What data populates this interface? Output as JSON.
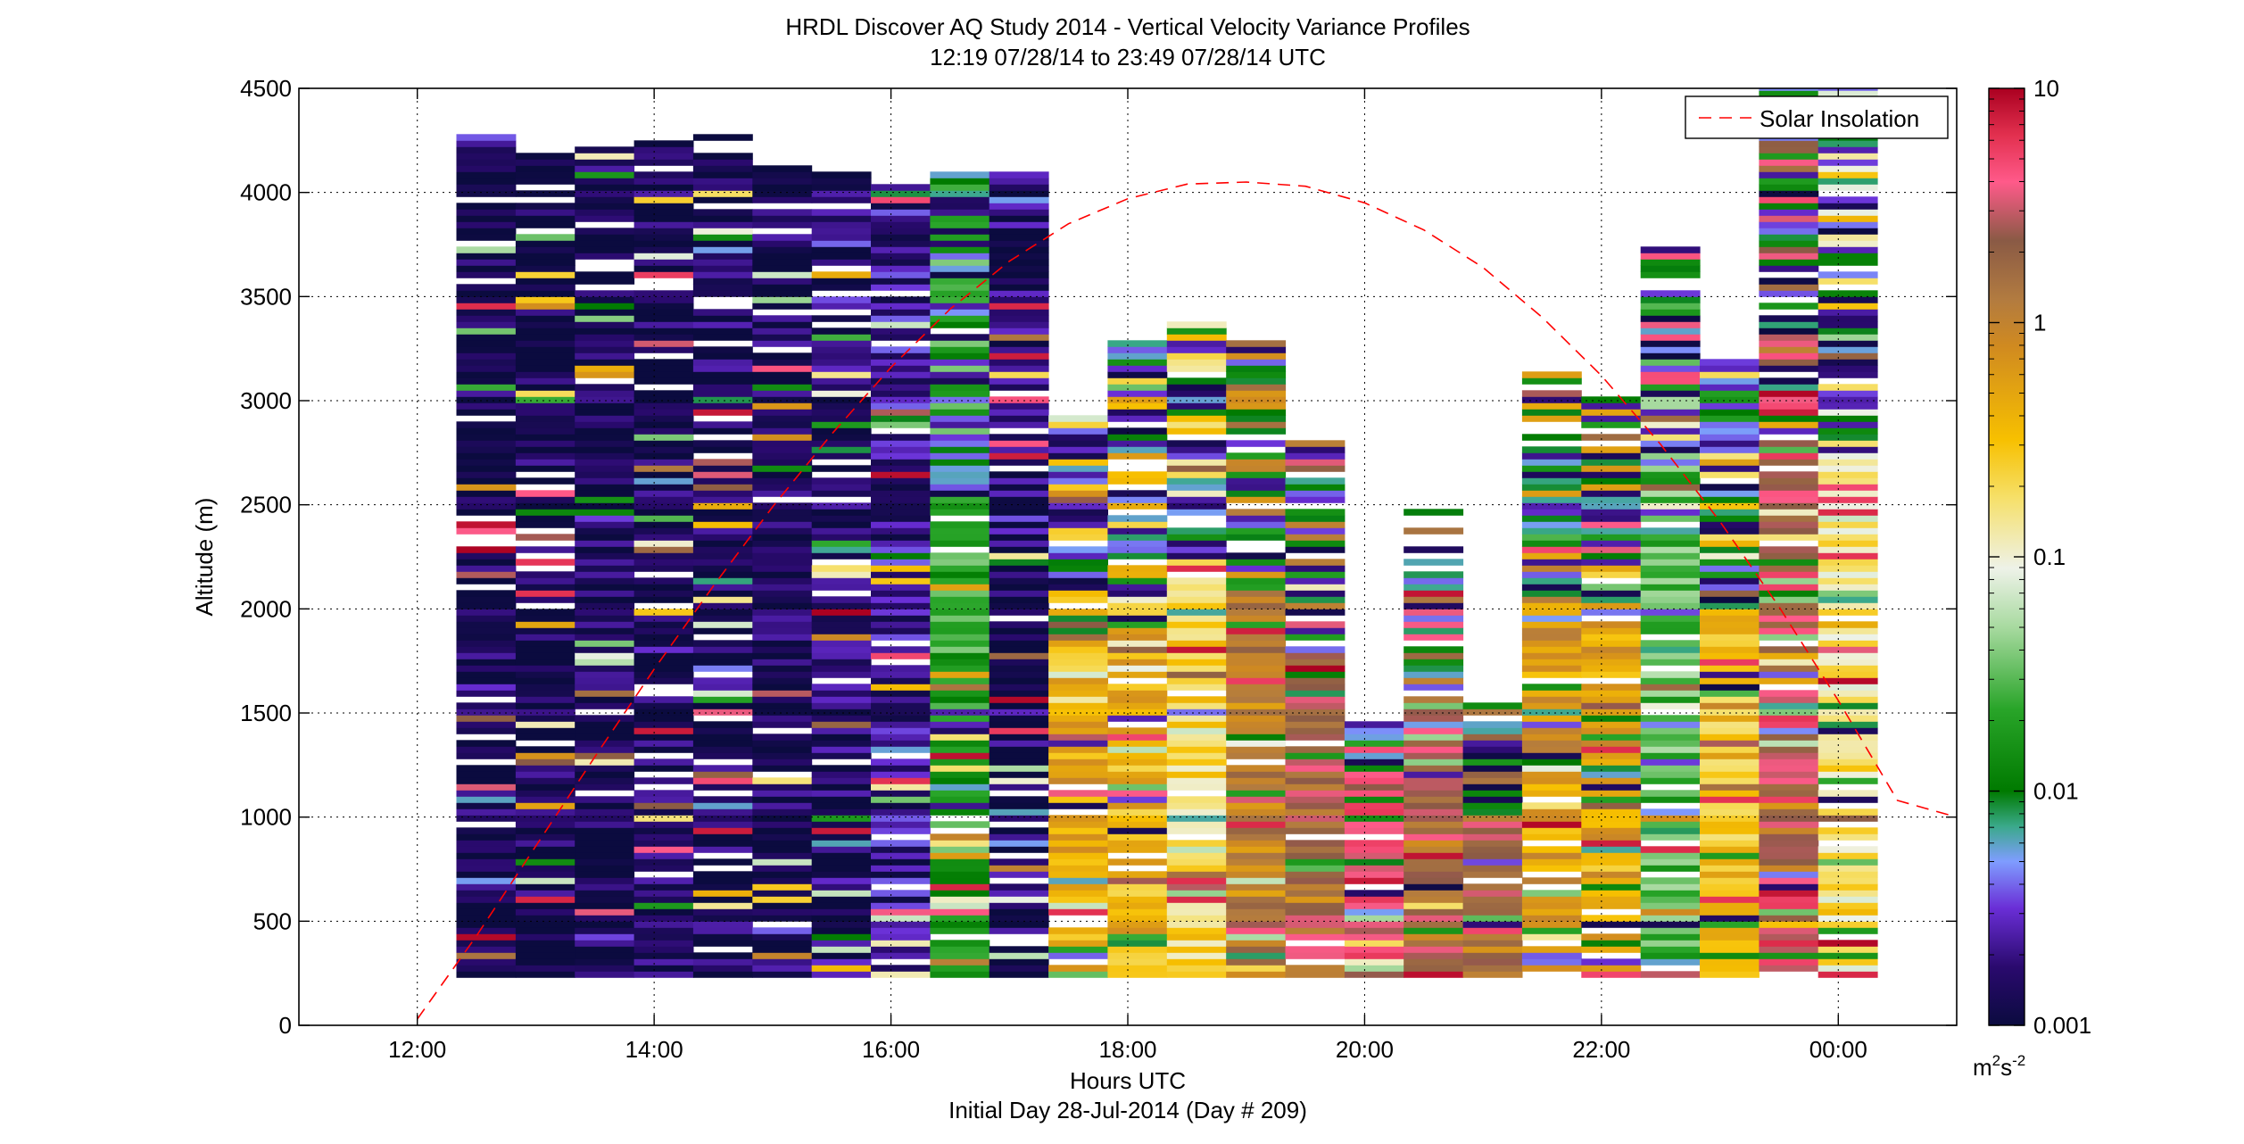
{
  "chart_data": {
    "type": "heatmap",
    "title": "HRDL Discover AQ Study 2014 - Vertical Velocity Variance Profiles",
    "subtitle": "12:19 07/28/14 to 23:49 07/28/14  UTC",
    "xlabel": "Hours UTC",
    "xlabel2": "Initial Day 28-Jul-2014 (Day # 209)",
    "ylabel": "Altitude (m)",
    "xlim": [
      11,
      25
    ],
    "ylim": [
      0,
      4500
    ],
    "x_ticks": [
      12,
      14,
      16,
      18,
      20,
      22,
      24
    ],
    "x_tick_labels": [
      "12:00",
      "14:00",
      "16:00",
      "18:00",
      "20:00",
      "22:00",
      "00:00"
    ],
    "y_ticks": [
      0,
      500,
      1000,
      1500,
      2000,
      2500,
      3000,
      3500,
      4000,
      4500
    ],
    "y_tick_labels": [
      "0",
      "500",
      "1000",
      "1500",
      "2000",
      "2500",
      "3000",
      "3500",
      "4000",
      "4500"
    ],
    "grid": true,
    "legend": {
      "placement": "top-right",
      "entries": [
        "Solar Insolation"
      ]
    },
    "colorbar": {
      "scale": "log",
      "range": [
        0.001,
        10
      ],
      "tick_values": [
        0.001,
        0.01,
        0.1,
        1,
        10
      ],
      "tick_labels": [
        "0.001",
        "0.01",
        "0.1",
        "1",
        "10"
      ],
      "unit_main": "m",
      "unit_sup1": "2",
      "unit_mid": "s",
      "unit_sup2": "-2"
    },
    "solar_insolation": {
      "name": "Solar Insolation",
      "color": "#ff0000",
      "style": "dashed",
      "x": [
        12,
        12.5,
        13,
        13.5,
        14,
        14.5,
        15,
        15.5,
        16,
        16.5,
        17,
        17.5,
        18,
        18.5,
        19,
        19.5,
        20,
        20.5,
        21,
        21.5,
        22,
        22.5,
        23,
        23.5,
        24,
        24.5,
        25
      ],
      "y": [
        30,
        430,
        860,
        1290,
        1710,
        2110,
        2490,
        2840,
        3160,
        3440,
        3670,
        3850,
        3970,
        4040,
        4050,
        4030,
        3950,
        3820,
        3640,
        3400,
        3120,
        2790,
        2420,
        2010,
        1560,
        1080,
        1000
      ]
    },
    "profiles": {
      "bin_height_m": 30,
      "column_width_h": 0.5,
      "columns": [
        {
          "t": 12.33,
          "bottom": 230,
          "top": 4260,
          "dominant": 0.0012,
          "mix": 0.15
        },
        {
          "t": 12.83,
          "bottom": 230,
          "top": 4190,
          "dominant": 0.0012,
          "mix": 0.15
        },
        {
          "t": 13.33,
          "bottom": 230,
          "top": 4220,
          "dominant": 0.0012,
          "mix": 0.15
        },
        {
          "t": 13.83,
          "bottom": 230,
          "top": 4250,
          "dominant": 0.0013,
          "mix": 0.15
        },
        {
          "t": 14.33,
          "bottom": 230,
          "top": 4280,
          "dominant": 0.0013,
          "mix": 0.15
        },
        {
          "t": 14.83,
          "bottom": 230,
          "top": 4130,
          "dominant": 0.0014,
          "mix": 0.15
        },
        {
          "t": 15.33,
          "bottom": 230,
          "top": 4090,
          "dominant": 0.0015,
          "mix": 0.18
        },
        {
          "t": 15.83,
          "bottom": 230,
          "top": 4020,
          "dominant": 0.002,
          "mix": 0.2
        },
        {
          "t": 16.33,
          "bottom": 230,
          "top": 4100,
          "dominant": 0.02,
          "mix": 0.3
        },
        {
          "t": 16.83,
          "bottom": 230,
          "top": 4100,
          "dominant": 0.0015,
          "mix": 0.18
        },
        {
          "t": 17.33,
          "bottom": 230,
          "top": 2930,
          "dominant": 0.4,
          "mix": 0.25
        },
        {
          "t": 17.83,
          "bottom": 230,
          "top": 3290,
          "dominant": 0.4,
          "mix": 0.25
        },
        {
          "t": 18.33,
          "bottom": 230,
          "top": 3380,
          "dominant": 0.2,
          "mix": 0.25
        },
        {
          "t": 18.83,
          "bottom": 230,
          "top": 3290,
          "dominant": 1.0,
          "mix": 0.25
        },
        {
          "t": 19.33,
          "bottom": 230,
          "top": 2810,
          "dominant": 2.0,
          "mix": 0.25
        },
        {
          "t": 19.83,
          "bottom": 230,
          "top": 1450,
          "dominant": 4.0,
          "mix": 0.2
        },
        {
          "t": 20.33,
          "bottom": 230,
          "top": 2470,
          "dominant": 2.0,
          "mix": 0.25
        },
        {
          "t": 20.83,
          "bottom": 230,
          "top": 1550,
          "dominant": 2.0,
          "mix": 0.25
        },
        {
          "t": 21.33,
          "bottom": 230,
          "top": 3170,
          "dominant": 0.6,
          "mix": 0.3
        },
        {
          "t": 21.83,
          "bottom": 230,
          "top": 3030,
          "dominant": 0.5,
          "mix": 0.3
        },
        {
          "t": 22.33,
          "bottom": 230,
          "top": 3740,
          "dominant": 0.03,
          "mix": 0.3
        },
        {
          "t": 22.83,
          "bottom": 230,
          "top": 3180,
          "dominant": 0.3,
          "mix": 0.3
        },
        {
          "t": 23.33,
          "bottom": 230,
          "top": 4500,
          "dominant": 3.0,
          "mix": 0.25
        },
        {
          "t": 23.83,
          "bottom": 230,
          "top": 4500,
          "dominant": 0.15,
          "mix": 0.3
        }
      ]
    }
  }
}
